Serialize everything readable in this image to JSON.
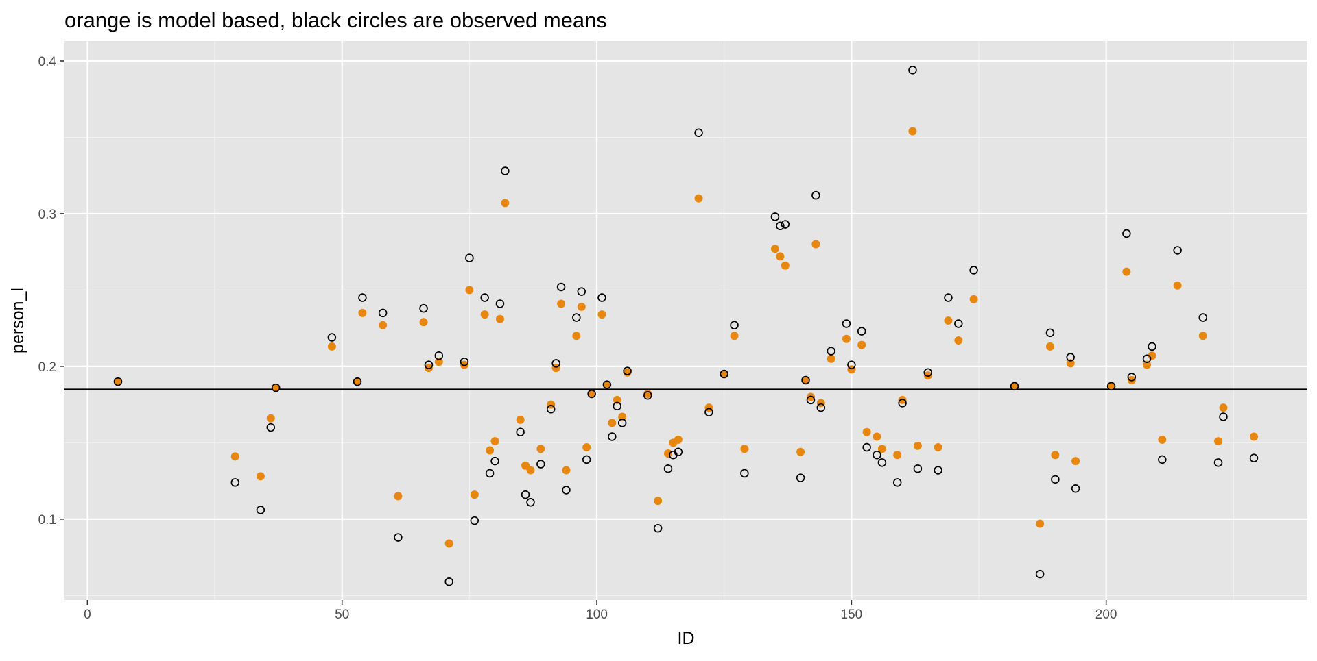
{
  "chart_data": {
    "type": "scatter",
    "title": "orange is model based, black circles are observed means",
    "xlabel": "ID",
    "ylabel": "person_l",
    "xlim": [
      -4.5,
      239.5
    ],
    "ylim": [
      0.047,
      0.413
    ],
    "x_ticks": [
      0,
      50,
      100,
      150,
      200
    ],
    "x_tick_labels": [
      "0",
      "50",
      "100",
      "150",
      "200"
    ],
    "y_ticks": [
      0.1,
      0.2,
      0.3,
      0.4
    ],
    "y_tick_labels": [
      "0.1",
      "0.2",
      "0.3",
      "0.4"
    ],
    "grid": true,
    "panel_background": "#e5e5e5",
    "hline": 0.185,
    "series": [
      {
        "style": "orange filled points",
        "color": "#e8870f",
        "marker": "filled-circle",
        "points": [
          [
            6,
            0.19
          ],
          [
            29,
            0.141
          ],
          [
            34,
            0.128
          ],
          [
            36,
            0.166
          ],
          [
            37,
            0.186
          ],
          [
            48,
            0.213
          ],
          [
            53,
            0.19
          ],
          [
            54,
            0.235
          ],
          [
            58,
            0.227
          ],
          [
            61,
            0.115
          ],
          [
            66,
            0.229
          ],
          [
            67,
            0.199
          ],
          [
            69,
            0.203
          ],
          [
            71,
            0.084
          ],
          [
            74,
            0.201
          ],
          [
            75,
            0.25
          ],
          [
            76,
            0.116
          ],
          [
            78,
            0.234
          ],
          [
            79,
            0.145
          ],
          [
            80,
            0.151
          ],
          [
            81,
            0.231
          ],
          [
            82,
            0.307
          ],
          [
            85,
            0.165
          ],
          [
            86,
            0.135
          ],
          [
            87,
            0.132
          ],
          [
            89,
            0.146
          ],
          [
            91,
            0.175
          ],
          [
            92,
            0.199
          ],
          [
            93,
            0.241
          ],
          [
            94,
            0.132
          ],
          [
            96,
            0.22
          ],
          [
            97,
            0.239
          ],
          [
            98,
            0.147
          ],
          [
            99,
            0.182
          ],
          [
            101,
            0.234
          ],
          [
            102,
            0.188
          ],
          [
            103,
            0.163
          ],
          [
            104,
            0.178
          ],
          [
            105,
            0.167
          ],
          [
            106,
            0.196
          ],
          [
            110,
            0.182
          ],
          [
            112,
            0.112
          ],
          [
            114,
            0.143
          ],
          [
            115,
            0.15
          ],
          [
            116,
            0.152
          ],
          [
            120,
            0.31
          ],
          [
            122,
            0.173
          ],
          [
            125,
            0.195
          ],
          [
            127,
            0.22
          ],
          [
            129,
            0.146
          ],
          [
            135,
            0.277
          ],
          [
            136,
            0.272
          ],
          [
            137,
            0.266
          ],
          [
            140,
            0.144
          ],
          [
            141,
            0.191
          ],
          [
            142,
            0.18
          ],
          [
            143,
            0.28
          ],
          [
            144,
            0.176
          ],
          [
            146,
            0.205
          ],
          [
            149,
            0.218
          ],
          [
            150,
            0.198
          ],
          [
            152,
            0.214
          ],
          [
            153,
            0.157
          ],
          [
            155,
            0.154
          ],
          [
            156,
            0.146
          ],
          [
            159,
            0.142
          ],
          [
            160,
            0.178
          ],
          [
            163,
            0.148
          ],
          [
            162,
            0.354
          ],
          [
            165,
            0.194
          ],
          [
            167,
            0.147
          ],
          [
            169,
            0.23
          ],
          [
            171,
            0.217
          ],
          [
            174,
            0.244
          ],
          [
            182,
            0.187
          ],
          [
            187,
            0.097
          ],
          [
            189,
            0.213
          ],
          [
            190,
            0.142
          ],
          [
            193,
            0.202
          ],
          [
            194,
            0.138
          ],
          [
            201,
            0.187
          ],
          [
            204,
            0.262
          ],
          [
            205,
            0.191
          ],
          [
            208,
            0.201
          ],
          [
            209,
            0.207
          ],
          [
            211,
            0.152
          ],
          [
            214,
            0.253
          ],
          [
            219,
            0.22
          ],
          [
            222,
            0.151
          ],
          [
            223,
            0.173
          ],
          [
            229,
            0.154
          ]
        ]
      },
      {
        "style": "black open circles",
        "color": "#000000",
        "marker": "open-circle",
        "points": [
          [
            6,
            0.19
          ],
          [
            29,
            0.124
          ],
          [
            34,
            0.106
          ],
          [
            36,
            0.16
          ],
          [
            37,
            0.186
          ],
          [
            48,
            0.219
          ],
          [
            53,
            0.19
          ],
          [
            54,
            0.245
          ],
          [
            58,
            0.235
          ],
          [
            61,
            0.088
          ],
          [
            66,
            0.238
          ],
          [
            67,
            0.201
          ],
          [
            69,
            0.207
          ],
          [
            71,
            0.059
          ],
          [
            74,
            0.203
          ],
          [
            75,
            0.271
          ],
          [
            76,
            0.099
          ],
          [
            78,
            0.245
          ],
          [
            79,
            0.13
          ],
          [
            80,
            0.138
          ],
          [
            81,
            0.241
          ],
          [
            82,
            0.328
          ],
          [
            85,
            0.157
          ],
          [
            86,
            0.116
          ],
          [
            87,
            0.111
          ],
          [
            89,
            0.136
          ],
          [
            91,
            0.172
          ],
          [
            92,
            0.202
          ],
          [
            93,
            0.252
          ],
          [
            94,
            0.119
          ],
          [
            96,
            0.232
          ],
          [
            97,
            0.249
          ],
          [
            98,
            0.139
          ],
          [
            99,
            0.182
          ],
          [
            101,
            0.245
          ],
          [
            102,
            0.188
          ],
          [
            103,
            0.154
          ],
          [
            104,
            0.174
          ],
          [
            105,
            0.163
          ],
          [
            106,
            0.197
          ],
          [
            110,
            0.181
          ],
          [
            112,
            0.094
          ],
          [
            114,
            0.133
          ],
          [
            115,
            0.142
          ],
          [
            116,
            0.144
          ],
          [
            120,
            0.353
          ],
          [
            122,
            0.17
          ],
          [
            125,
            0.195
          ],
          [
            127,
            0.227
          ],
          [
            129,
            0.13
          ],
          [
            135,
            0.298
          ],
          [
            136,
            0.292
          ],
          [
            137,
            0.293
          ],
          [
            140,
            0.127
          ],
          [
            141,
            0.191
          ],
          [
            142,
            0.178
          ],
          [
            143,
            0.312
          ],
          [
            144,
            0.173
          ],
          [
            146,
            0.21
          ],
          [
            149,
            0.228
          ],
          [
            150,
            0.201
          ],
          [
            152,
            0.223
          ],
          [
            153,
            0.147
          ],
          [
            155,
            0.142
          ],
          [
            156,
            0.137
          ],
          [
            159,
            0.124
          ],
          [
            160,
            0.176
          ],
          [
            163,
            0.133
          ],
          [
            162,
            0.394
          ],
          [
            165,
            0.196
          ],
          [
            167,
            0.132
          ],
          [
            169,
            0.245
          ],
          [
            171,
            0.228
          ],
          [
            174,
            0.263
          ],
          [
            182,
            0.187
          ],
          [
            187,
            0.064
          ],
          [
            189,
            0.222
          ],
          [
            190,
            0.126
          ],
          [
            193,
            0.206
          ],
          [
            194,
            0.12
          ],
          [
            201,
            0.187
          ],
          [
            204,
            0.287
          ],
          [
            205,
            0.193
          ],
          [
            208,
            0.205
          ],
          [
            209,
            0.213
          ],
          [
            211,
            0.139
          ],
          [
            214,
            0.276
          ],
          [
            219,
            0.232
          ],
          [
            222,
            0.137
          ],
          [
            223,
            0.167
          ],
          [
            229,
            0.14
          ]
        ]
      }
    ]
  }
}
